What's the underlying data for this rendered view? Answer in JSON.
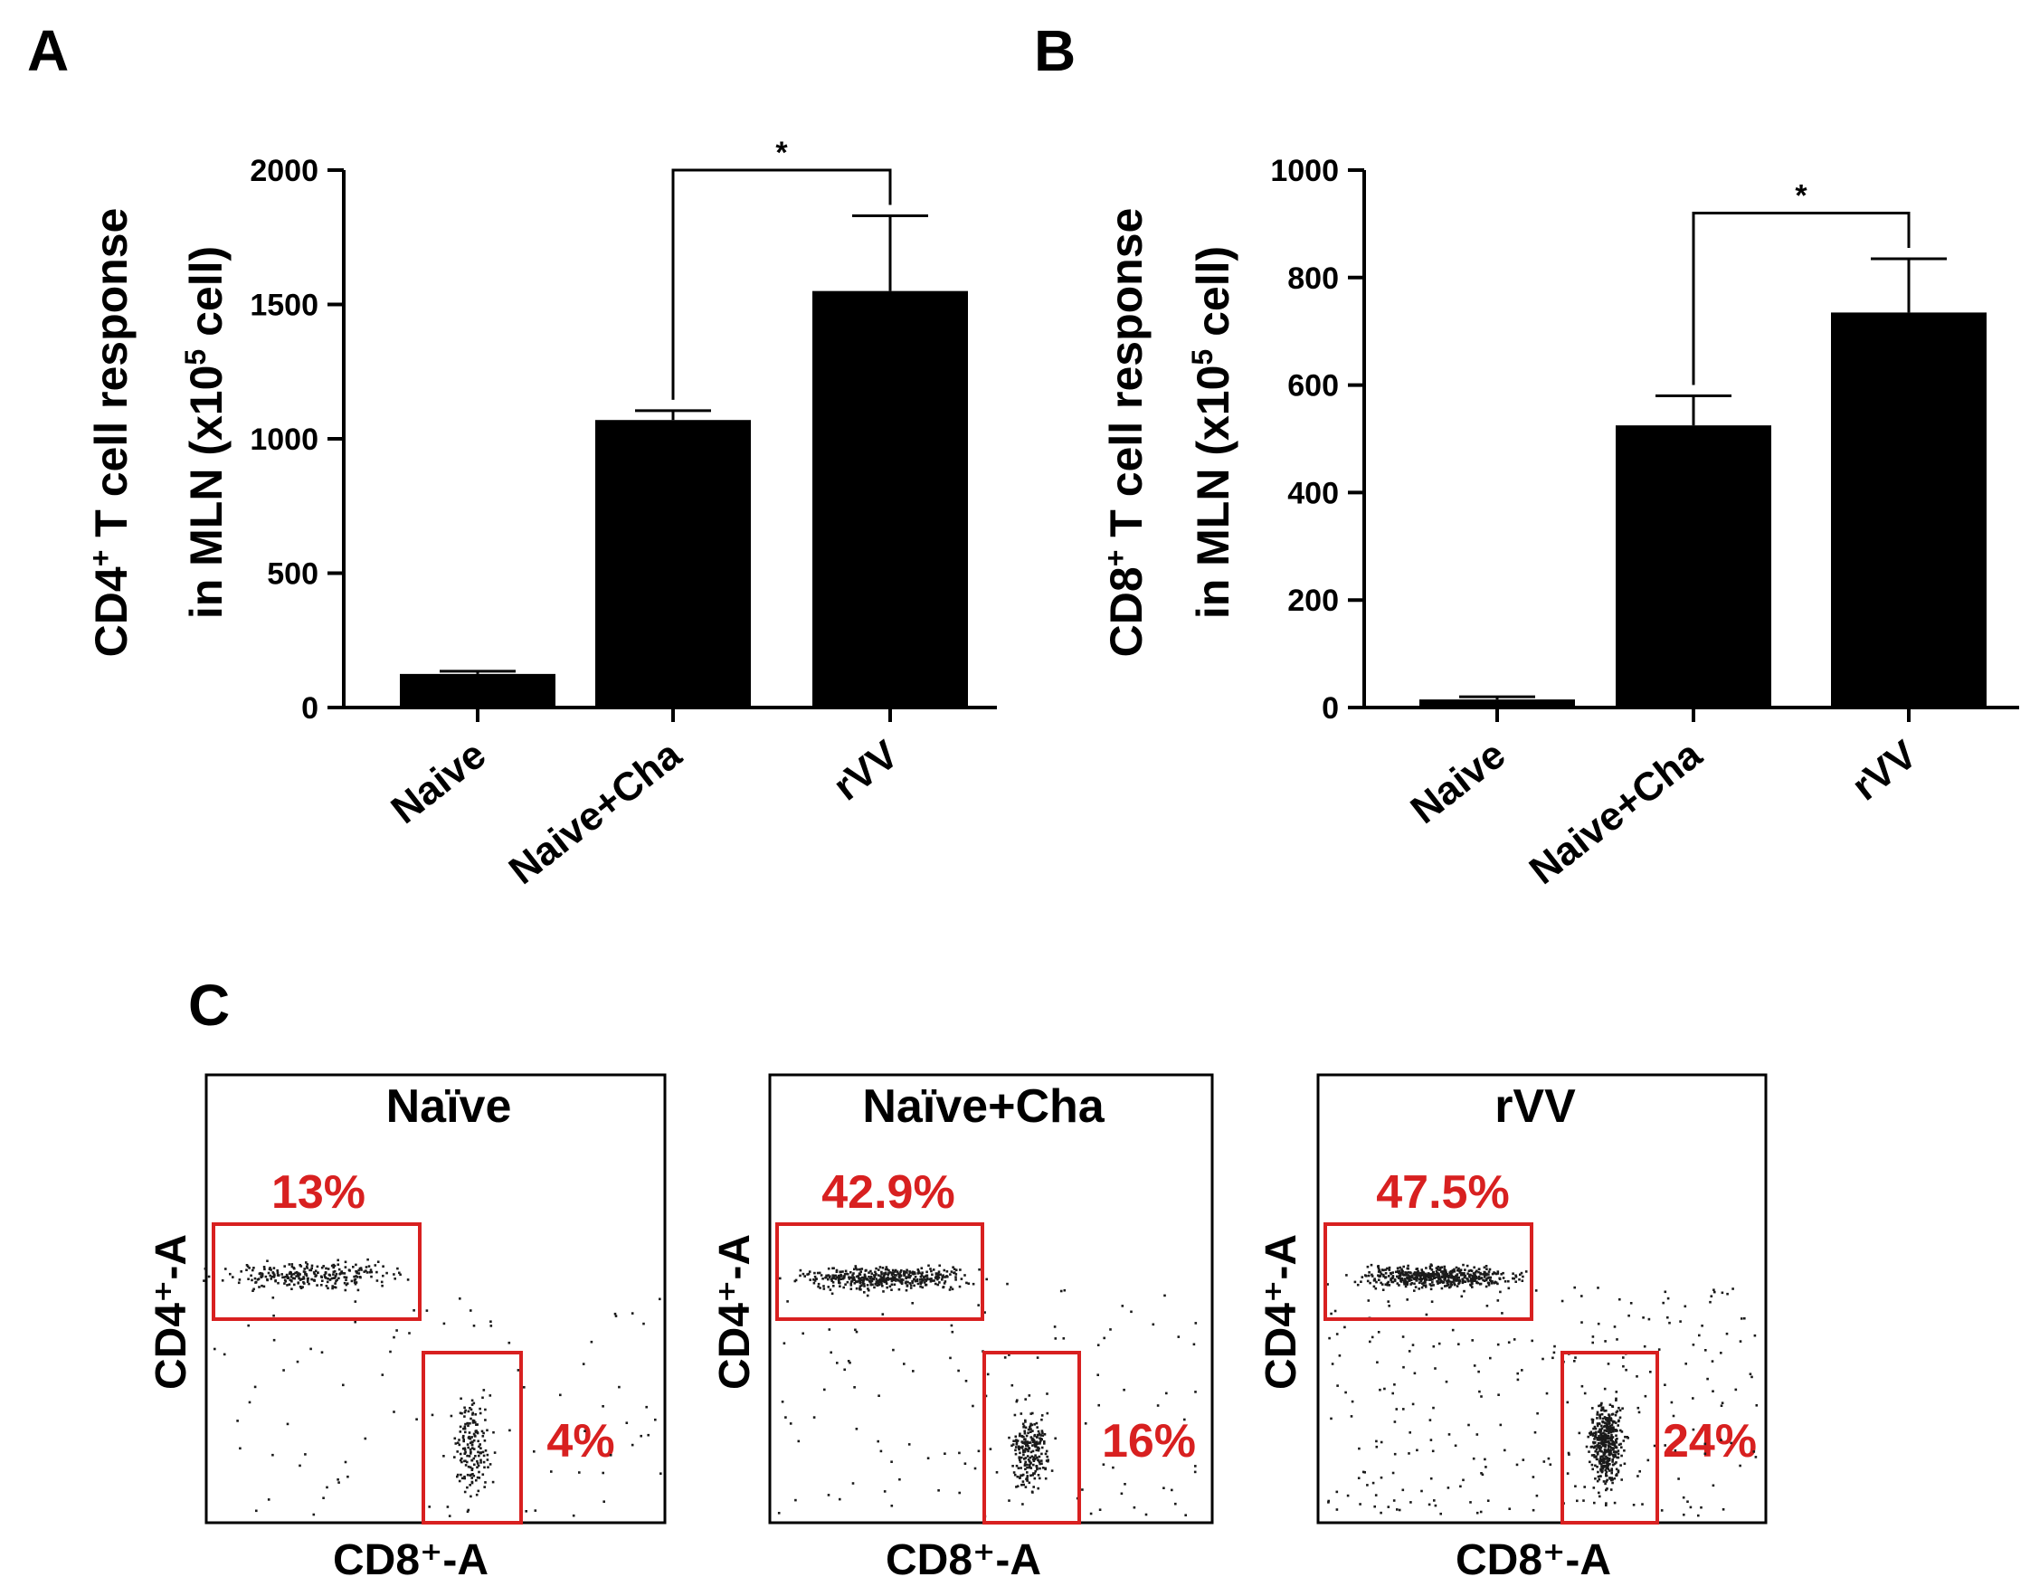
{
  "chart_data": [
    {
      "type": "bar",
      "panel": "A",
      "ylabel_line1": "CD4",
      "ylabel_line1_sup": "+",
      "ylabel_line1_rest": " T cell response",
      "ylabel_line2": "in MLN  (x10",
      "ylabel_line2_sup": "5",
      "ylabel_line2_rest": " cell)",
      "ylim": [
        0,
        2000
      ],
      "yticks": [
        "0",
        "500",
        "1000",
        "1500",
        "2000"
      ],
      "ytick_values": [
        0,
        500,
        1000,
        1500,
        2000
      ],
      "categories": [
        "Naive",
        "Naive+Cha",
        "rVV"
      ],
      "values": [
        125,
        1070,
        1550
      ],
      "errors": [
        10,
        35,
        280
      ],
      "significance": {
        "from": 1,
        "to": 2,
        "label": "*",
        "y": 2000
      }
    },
    {
      "type": "bar",
      "panel": "B",
      "ylabel_line1": "CD8",
      "ylabel_line1_sup": "+",
      "ylabel_line1_rest": " T cell response",
      "ylabel_line2": "in MLN  (x10",
      "ylabel_line2_sup": "5",
      "ylabel_line2_rest": " cell)",
      "ylim": [
        0,
        1000
      ],
      "yticks": [
        "0",
        "200",
        "400",
        "600",
        "800",
        "1000"
      ],
      "ytick_values": [
        0,
        200,
        400,
        600,
        800,
        1000
      ],
      "categories": [
        "Naive",
        "Naive+Cha",
        "rVV"
      ],
      "values": [
        15,
        525,
        735
      ],
      "errors": [
        5,
        55,
        100
      ],
      "significance": {
        "from": 1,
        "to": 2,
        "label": "*",
        "y": 920
      }
    },
    {
      "type": "scatter",
      "panel": "C",
      "xlabel": "CD8⁺-A",
      "ylabel": "CD4⁺-A",
      "plots": [
        {
          "title": "Naïve",
          "cd4_percent": "13%",
          "cd8_percent": "4%",
          "cd4_events": 260,
          "cd8_events": 160,
          "other_events": 90
        },
        {
          "title": "Naïve+Cha",
          "cd4_percent": "42.9%",
          "cd8_percent": "16%",
          "cd4_events": 420,
          "cd8_events": 220,
          "other_events": 120
        },
        {
          "title": "rVV",
          "cd4_percent": "47.5%",
          "cd8_percent": "24%",
          "cd4_events": 520,
          "cd8_events": 420,
          "other_events": 260
        }
      ]
    }
  ],
  "colors": {
    "bar": "#000000",
    "gate": "#d82020",
    "percent_text": "#d82020",
    "event": "#1a1a1a"
  }
}
